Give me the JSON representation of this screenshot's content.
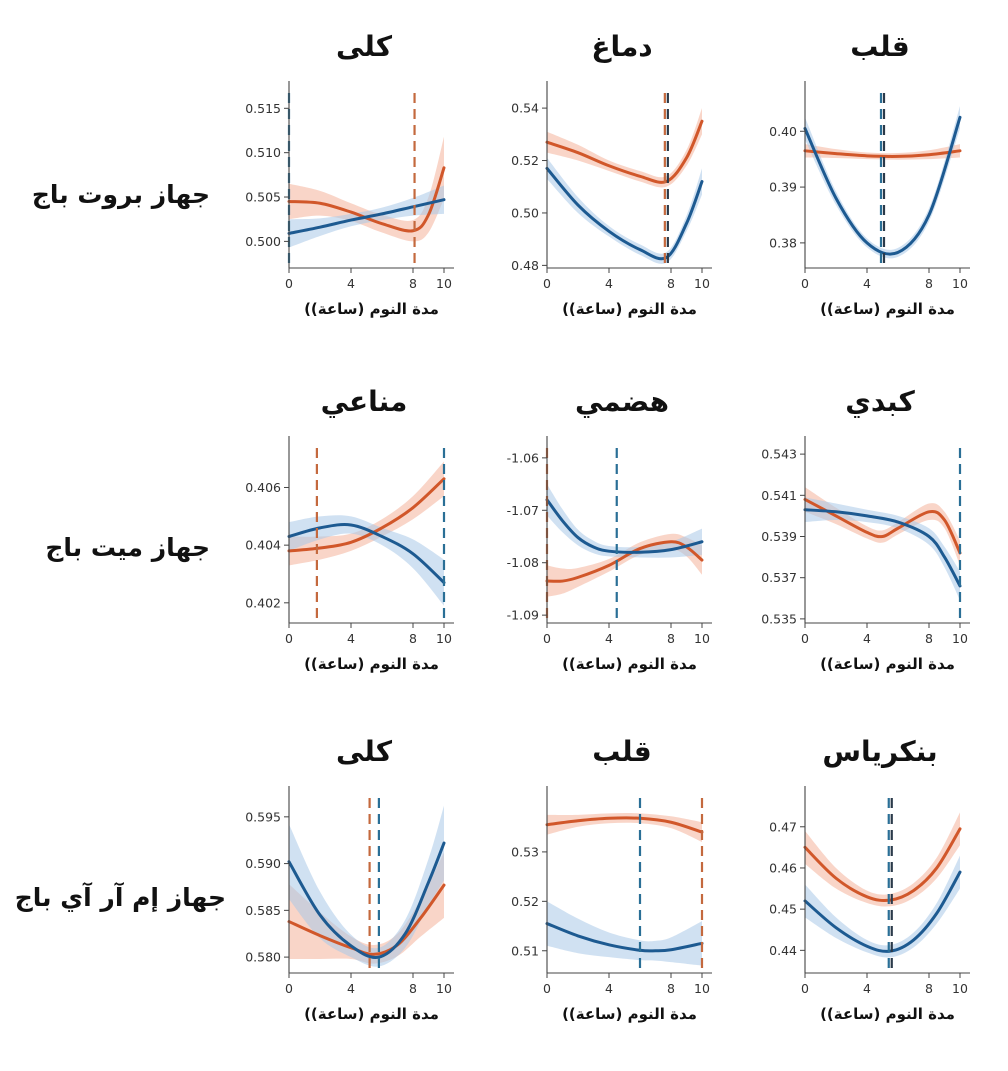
{
  "colors": {
    "blue_line": "#1d5a91",
    "blue_band": "#a9c8e8",
    "orange_line": "#d1572a",
    "orange_band": "#f4b39a",
    "blue_dash": "#2a6f96",
    "orange_dash": "#c4693e"
  },
  "row_labels": [
    "جهاز بروت باج",
    "جهاز ميت باج",
    "جهاز إم آر آي باج"
  ],
  "chart_data": [
    {
      "type": "line",
      "row": 0,
      "col": 0,
      "title": "قلب",
      "xlabel": "مدة النوم (ساعة))",
      "xlim": [
        0,
        10
      ],
      "ylim": [
        0.3755,
        0.4065
      ],
      "xticks": [
        0,
        4,
        8,
        10
      ],
      "yticks": [
        0.38,
        0.39,
        0.4
      ],
      "ytick_labels": [
        "0.38",
        "0.39",
        "0.40"
      ],
      "series": [
        {
          "color": "orange",
          "x": [
            0,
            2,
            4,
            6,
            8,
            10
          ],
          "y": [
            0.3965,
            0.396,
            0.3956,
            0.3955,
            0.3958,
            0.3965
          ],
          "band": [
            0.0012,
            0.0008,
            0.0006,
            0.0006,
            0.0008,
            0.0012
          ]
        },
        {
          "color": "blue",
          "x": [
            0,
            2,
            4,
            6,
            8,
            10
          ],
          "y": [
            0.4005,
            0.388,
            0.38,
            0.3783,
            0.385,
            0.4025
          ],
          "band": [
            0.002,
            0.0012,
            0.0008,
            0.0008,
            0.0012,
            0.002
          ]
        }
      ],
      "vlines": [
        {
          "x": 5.0,
          "colors": [
            "blue",
            "dark"
          ]
        }
      ]
    },
    {
      "type": "line",
      "row": 0,
      "col": 1,
      "title": "دماغ",
      "xlabel": "مدة النوم (ساعة))",
      "xlim": [
        0,
        10
      ],
      "ylim": [
        0.479,
        0.545
      ],
      "xticks": [
        0,
        4,
        8,
        10
      ],
      "yticks": [
        0.48,
        0.5,
        0.52,
        0.54
      ],
      "ytick_labels": [
        "0.48",
        "0.50",
        "0.52",
        "0.54"
      ],
      "series": [
        {
          "color": "orange",
          "x": [
            0,
            2,
            4,
            6,
            7.7,
            9,
            10
          ],
          "y": [
            0.527,
            0.523,
            0.518,
            0.514,
            0.512,
            0.521,
            0.535
          ],
          "band": [
            0.004,
            0.003,
            0.002,
            0.002,
            0.002,
            0.003,
            0.005
          ]
        },
        {
          "color": "blue",
          "x": [
            0,
            2,
            4,
            6,
            7.7,
            9,
            10
          ],
          "y": [
            0.517,
            0.503,
            0.493,
            0.486,
            0.483,
            0.496,
            0.512
          ],
          "band": [
            0.004,
            0.003,
            0.002,
            0.002,
            0.002,
            0.003,
            0.005
          ]
        }
      ],
      "vlines": [
        {
          "x": 7.7,
          "colors": [
            "orange",
            "dark"
          ]
        }
      ]
    },
    {
      "type": "line",
      "row": 0,
      "col": 2,
      "title": "كلى",
      "xlabel": "مدة النوم (ساعة))",
      "xlim": [
        0,
        10
      ],
      "ylim": [
        0.497,
        0.5165
      ],
      "xticks": [
        0,
        4,
        8,
        10
      ],
      "yticks": [
        0.5,
        0.505,
        0.51,
        0.515
      ],
      "ytick_labels": [
        "0.500",
        "0.505",
        "0.510",
        "0.515"
      ],
      "series": [
        {
          "color": "orange",
          "x": [
            0,
            2,
            4,
            6,
            8,
            9,
            10
          ],
          "y": [
            0.5045,
            0.5043,
            0.5033,
            0.502,
            0.5012,
            0.503,
            0.5083
          ],
          "band": [
            0.002,
            0.0014,
            0.001,
            0.001,
            0.0012,
            0.002,
            0.0035
          ]
        },
        {
          "color": "blue",
          "x": [
            0,
            2,
            4,
            6,
            8,
            10
          ],
          "y": [
            0.5009,
            0.5016,
            0.5024,
            0.5031,
            0.5039,
            0.5047
          ],
          "band": [
            0.0016,
            0.001,
            0.0007,
            0.0007,
            0.001,
            0.0016
          ]
        }
      ],
      "vlines": [
        {
          "x": 0,
          "colors": [
            "blue"
          ]
        },
        {
          "x": 8.1,
          "colors": [
            "orange"
          ]
        }
      ]
    },
    {
      "type": "line",
      "row": 1,
      "col": 0,
      "title": "كبدي",
      "xlabel": "مدة النوم (ساعة))",
      "xlim": [
        0,
        10
      ],
      "ylim": [
        0.5348,
        0.5432
      ],
      "xticks": [
        0,
        4,
        8,
        10
      ],
      "yticks": [
        0.535,
        0.537,
        0.539,
        0.541,
        0.543
      ],
      "ytick_labels": [
        "0.535",
        "0.537",
        "0.539",
        "0.541",
        "0.543"
      ],
      "series": [
        {
          "color": "orange",
          "x": [
            0,
            2,
            4,
            5,
            6,
            8,
            9,
            10
          ],
          "y": [
            0.5408,
            0.54,
            0.5392,
            0.539,
            0.5394,
            0.5402,
            0.5398,
            0.5382
          ],
          "band": [
            0.0006,
            0.0004,
            0.0003,
            0.0003,
            0.0003,
            0.0004,
            0.0004,
            0.0006
          ]
        },
        {
          "color": "blue",
          "x": [
            0,
            2,
            4,
            6,
            8,
            9,
            10
          ],
          "y": [
            0.5403,
            0.5402,
            0.54,
            0.5397,
            0.539,
            0.538,
            0.5366
          ],
          "band": [
            0.0006,
            0.0004,
            0.0003,
            0.0003,
            0.0004,
            0.0005,
            0.0007
          ]
        }
      ],
      "vlines": [
        {
          "x": 10,
          "colors": [
            "blue"
          ]
        }
      ]
    },
    {
      "type": "line",
      "row": 1,
      "col": 1,
      "title": "هضمي",
      "xlabel": "مدة النوم (ساعة))",
      "xlim": [
        0,
        10
      ],
      "ylim": [
        -1.0915,
        -1.0585
      ],
      "xticks": [
        0,
        4,
        8,
        10
      ],
      "yticks": [
        -1.06,
        -1.07,
        -1.08,
        -1.09
      ],
      "ytick_labels": [
        "-1.06",
        "-1.07",
        "-1.08",
        "-1.09"
      ],
      "series": [
        {
          "color": "orange",
          "x": [
            0,
            1,
            2,
            4,
            6,
            8,
            9,
            10
          ],
          "y": [
            -1.0835,
            -1.0835,
            -1.0828,
            -1.0805,
            -1.0773,
            -1.076,
            -1.077,
            -1.0795
          ],
          "band": [
            0.003,
            0.0024,
            0.0018,
            0.0012,
            0.0012,
            0.0015,
            0.0018,
            0.0028
          ]
        },
        {
          "color": "blue",
          "x": [
            0,
            1,
            2,
            3,
            4,
            6,
            8,
            10
          ],
          "y": [
            -1.068,
            -1.072,
            -1.0752,
            -1.077,
            -1.0778,
            -1.078,
            -1.0775,
            -1.076
          ],
          "band": [
            0.003,
            0.0022,
            0.0015,
            0.0012,
            0.001,
            0.001,
            0.0015,
            0.0025
          ]
        }
      ],
      "vlines": [
        {
          "x": 0,
          "colors": [
            "orange"
          ]
        },
        {
          "x": 4.5,
          "colors": [
            "blue"
          ]
        }
      ]
    },
    {
      "type": "line",
      "row": 1,
      "col": 2,
      "title": "مناعي",
      "xlabel": "مدة النوم (ساعة))",
      "xlim": [
        0,
        10
      ],
      "ylim": [
        0.4013,
        0.4073
      ],
      "xticks": [
        0,
        4,
        8,
        10
      ],
      "yticks": [
        0.402,
        0.404,
        0.406
      ],
      "ytick_labels": [
        "0.402",
        "0.404",
        "0.406"
      ],
      "series": [
        {
          "color": "orange",
          "x": [
            0,
            2,
            4,
            6,
            8,
            10
          ],
          "y": [
            0.4038,
            0.4039,
            0.4041,
            0.4046,
            0.4053,
            0.4063
          ],
          "band": [
            0.0005,
            0.0004,
            0.0003,
            0.0003,
            0.0004,
            0.0006
          ]
        },
        {
          "color": "blue",
          "x": [
            0,
            2,
            4,
            6,
            8,
            10
          ],
          "y": [
            0.4043,
            0.4046,
            0.4047,
            0.4043,
            0.4037,
            0.4027
          ],
          "band": [
            0.0005,
            0.0004,
            0.0003,
            0.0003,
            0.0005,
            0.0008
          ]
        }
      ],
      "vlines": [
        {
          "x": 1.8,
          "colors": [
            "orange"
          ]
        },
        {
          "x": 10,
          "colors": [
            "blue"
          ]
        }
      ]
    },
    {
      "type": "line",
      "row": 2,
      "col": 0,
      "title": "بنكرياس",
      "xlabel": "مدة النوم (ساعة))",
      "xlim": [
        0,
        10
      ],
      "ylim": [
        0.4345,
        0.4765
      ],
      "xticks": [
        0,
        4,
        8,
        10
      ],
      "yticks": [
        0.44,
        0.45,
        0.46,
        0.47
      ],
      "ytick_labels": [
        "0.44",
        "0.45",
        "0.46",
        "0.47"
      ],
      "series": [
        {
          "color": "orange",
          "x": [
            0,
            2,
            4,
            5.5,
            7,
            8.5,
            10
          ],
          "y": [
            0.465,
            0.4575,
            0.453,
            0.4522,
            0.4545,
            0.46,
            0.4695
          ],
          "band": [
            0.004,
            0.0025,
            0.0015,
            0.0015,
            0.0018,
            0.0025,
            0.004
          ]
        },
        {
          "color": "blue",
          "x": [
            0,
            2,
            4,
            5.5,
            7,
            8.5,
            10
          ],
          "y": [
            0.452,
            0.4455,
            0.441,
            0.4398,
            0.4425,
            0.449,
            0.459
          ],
          "band": [
            0.004,
            0.0025,
            0.0015,
            0.0015,
            0.0018,
            0.0025,
            0.004
          ]
        }
      ],
      "vlines": [
        {
          "x": 5.5,
          "colors": [
            "blue",
            "dark"
          ]
        }
      ]
    },
    {
      "type": "line",
      "row": 2,
      "col": 1,
      "title": "قلب",
      "xlabel": "مدة النوم (ساعة))",
      "xlim": [
        0,
        10
      ],
      "ylim": [
        0.5055,
        0.5405
      ],
      "xticks": [
        0,
        4,
        8,
        10
      ],
      "yticks": [
        0.51,
        0.52,
        0.53
      ],
      "ytick_labels": [
        "0.51",
        "0.52",
        "0.53"
      ],
      "series": [
        {
          "color": "orange",
          "x": [
            0,
            2,
            4,
            6,
            8,
            10
          ],
          "y": [
            0.5355,
            0.5363,
            0.5368,
            0.5368,
            0.536,
            0.534
          ],
          "band": [
            0.002,
            0.0012,
            0.001,
            0.001,
            0.0012,
            0.002
          ]
        },
        {
          "color": "blue",
          "x": [
            0,
            2,
            4,
            6,
            7,
            8,
            10
          ],
          "y": [
            0.5155,
            0.513,
            0.5112,
            0.5101,
            0.51,
            0.5102,
            0.5115
          ],
          "band": [
            0.0045,
            0.0035,
            0.0025,
            0.002,
            0.002,
            0.0025,
            0.0045
          ]
        }
      ],
      "vlines": [
        {
          "x": 6,
          "colors": [
            "blue"
          ]
        },
        {
          "x": 10,
          "colors": [
            "orange"
          ]
        }
      ]
    },
    {
      "type": "line",
      "row": 2,
      "col": 2,
      "title": "كلى",
      "xlabel": "مدة النوم (ساعة))",
      "xlim": [
        0,
        10
      ],
      "ylim": [
        0.5783,
        0.5968
      ],
      "xticks": [
        0,
        4,
        8,
        10
      ],
      "yticks": [
        0.58,
        0.585,
        0.59,
        0.595
      ],
      "ytick_labels": [
        "0.580",
        "0.585",
        "0.590",
        "0.595"
      ],
      "series": [
        {
          "color": "orange",
          "x": [
            0,
            2,
            4,
            5.5,
            7,
            8.5,
            10
          ],
          "y": [
            0.5838,
            0.5823,
            0.581,
            0.5803,
            0.5813,
            0.5842,
            0.5877
          ],
          "band": [
            0.004,
            0.0025,
            0.0012,
            0.001,
            0.0012,
            0.002,
            0.0035
          ]
        },
        {
          "color": "blue",
          "x": [
            0,
            2,
            4,
            5.8,
            7.5,
            9,
            10
          ],
          "y": [
            0.5902,
            0.5845,
            0.5812,
            0.58,
            0.5825,
            0.588,
            0.5922
          ],
          "band": [
            0.004,
            0.0025,
            0.0012,
            0.001,
            0.0015,
            0.0025,
            0.004
          ]
        }
      ],
      "vlines": [
        {
          "x": 5.2,
          "colors": [
            "orange"
          ]
        },
        {
          "x": 5.8,
          "colors": [
            "blue"
          ]
        }
      ]
    }
  ]
}
